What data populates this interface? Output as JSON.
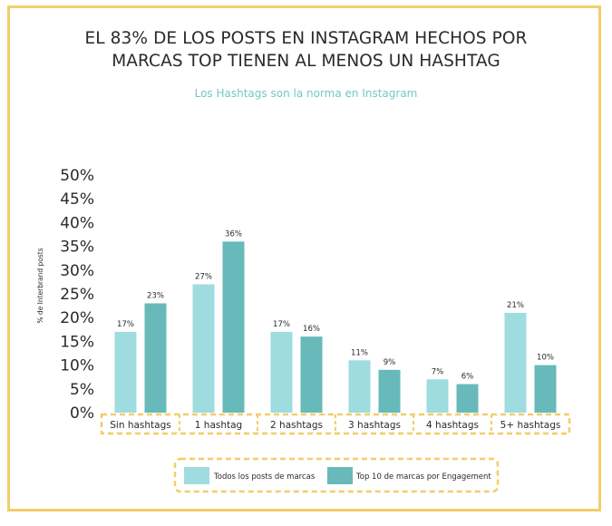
{
  "chart_data": {
    "type": "bar",
    "title_lines": [
      "EL 83% DE LOS POSTS EN INSTAGRAM HECHOS POR",
      "MARCAS TOP TIENEN AL MENOS UN HASHTAG"
    ],
    "subtitle": "Los Hashtags son la norma en Instagram",
    "ylabel": "% de Interbrand posts",
    "xlabel": "",
    "ylim": [
      0,
      50
    ],
    "yticks": [
      "0%",
      "5%",
      "10%",
      "15%",
      "20%",
      "25%",
      "30%",
      "35%",
      "40%",
      "45%",
      "50%"
    ],
    "categories": [
      "Sin hashtags",
      "1 hashtag",
      "2 hashtags",
      "3 hashtags",
      "4 hashtags",
      "5+ hashtags"
    ],
    "series": [
      {
        "name": "Todos los posts de marcas",
        "values": [
          17,
          27,
          17,
          11,
          7,
          21
        ],
        "labels": [
          "17%",
          "27%",
          "17%",
          "11%",
          "7%",
          "21%"
        ],
        "color": "#9edcdf"
      },
      {
        "name": "Top 10 de marcas por Engagement",
        "values": [
          23,
          36,
          16,
          9,
          6,
          10
        ],
        "labels": [
          "23%",
          "36%",
          "16%",
          "9%",
          "6%",
          "10%"
        ],
        "color": "#68b9b9"
      }
    ],
    "grid": false,
    "legend_position": "bottom-center",
    "accent_border_color": "#f2ce6a"
  }
}
